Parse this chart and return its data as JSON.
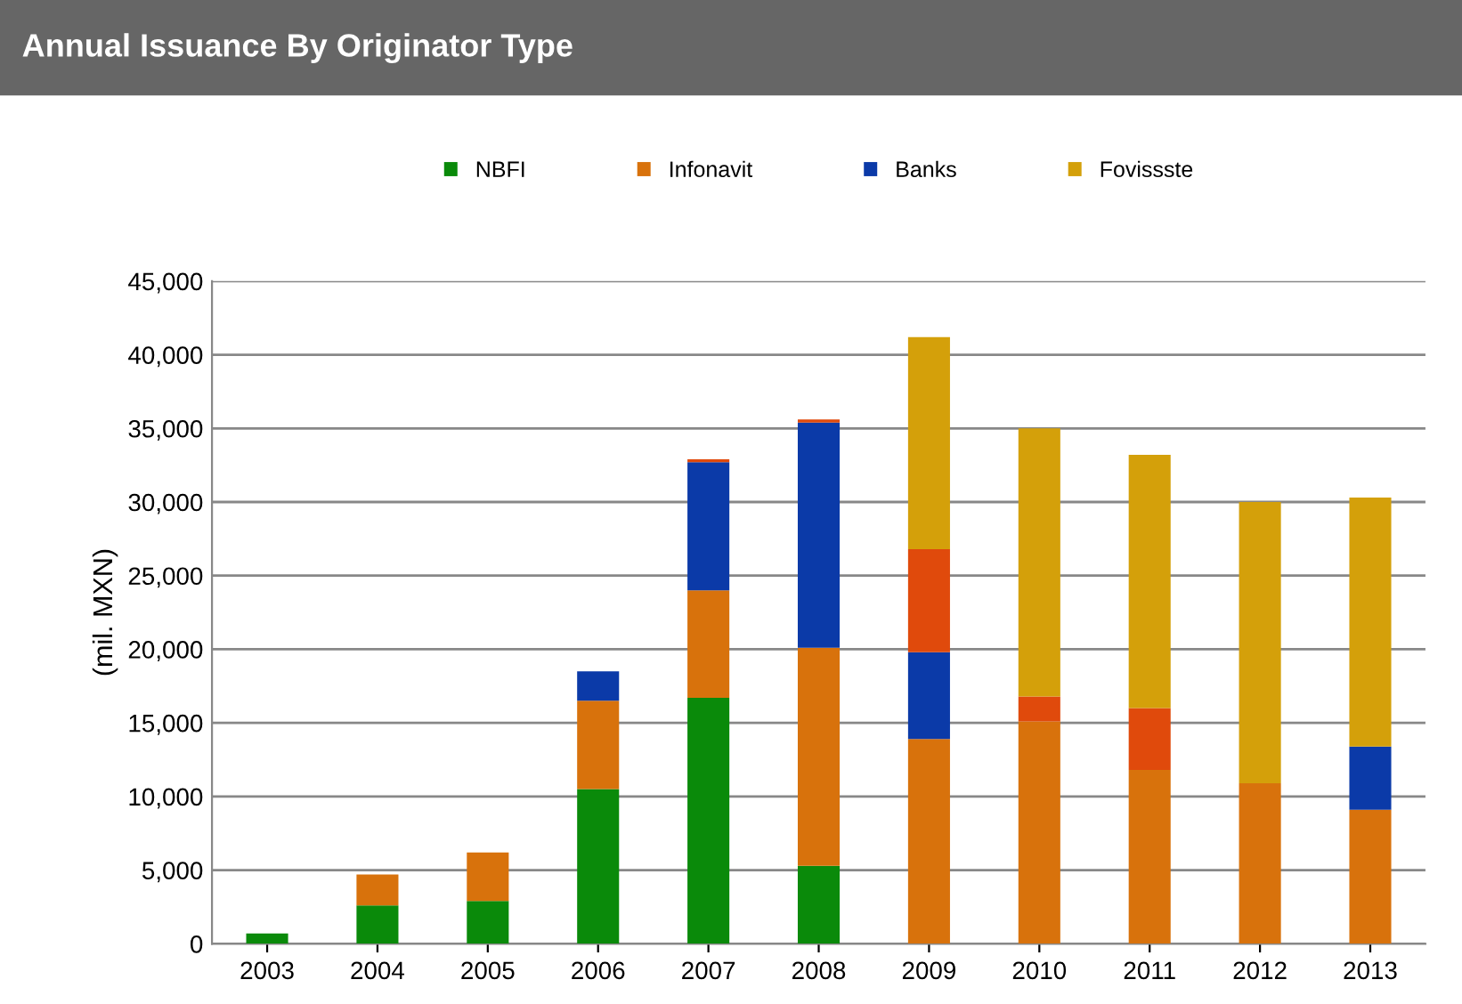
{
  "chart_data": {
    "type": "bar",
    "title": "Annual Issuance By Originator Type",
    "ylabel": "(mil. MXN)",
    "categories": [
      "2003",
      "2004",
      "2005",
      "2006",
      "2007",
      "2008",
      "2009",
      "2010",
      "2011",
      "2012",
      "2013"
    ],
    "stacked": true,
    "series": [
      {
        "name": "NBFI",
        "color": "#0a8a0a",
        "values": [
          700,
          2600,
          2900,
          10500,
          16700,
          5300,
          0,
          0,
          0,
          0,
          0
        ]
      },
      {
        "name": "Infonavit",
        "color": "#d8720c",
        "values": [
          0,
          2100,
          3300,
          6000,
          7300,
          14800,
          13900,
          15100,
          11800,
          10900,
          9100
        ]
      },
      {
        "name": "Banks",
        "color": "#0b3aa8",
        "values": [
          0,
          0,
          0,
          2000,
          8700,
          15300,
          5900,
          0,
          0,
          0,
          4300
        ]
      },
      {
        "color": "#e04a0c",
        "values": [
          0,
          0,
          0,
          0,
          200,
          200,
          7000,
          1700,
          4200,
          0,
          0
        ]
      },
      {
        "name": "Fovissste",
        "color": "#d4a00a",
        "values": [
          0,
          0,
          0,
          0,
          0,
          0,
          14400,
          18200,
          17200,
          19100,
          16900
        ]
      }
    ],
    "ylim": [
      0,
      45000
    ],
    "yticks": [
      {
        "value": 0,
        "label": "0"
      },
      {
        "value": 5000,
        "label": "5,000"
      },
      {
        "value": 10000,
        "label": "10,000"
      },
      {
        "value": 15000,
        "label": "15,000"
      },
      {
        "value": 20000,
        "label": "20,000"
      },
      {
        "value": 25000,
        "label": "25,000"
      },
      {
        "value": 30000,
        "label": "30,000"
      },
      {
        "value": 35000,
        "label": "35,000"
      },
      {
        "value": 40000,
        "label": "40,000"
      },
      {
        "value": 45000,
        "label": "45,000"
      }
    ],
    "grid": "y",
    "legend": "top"
  }
}
